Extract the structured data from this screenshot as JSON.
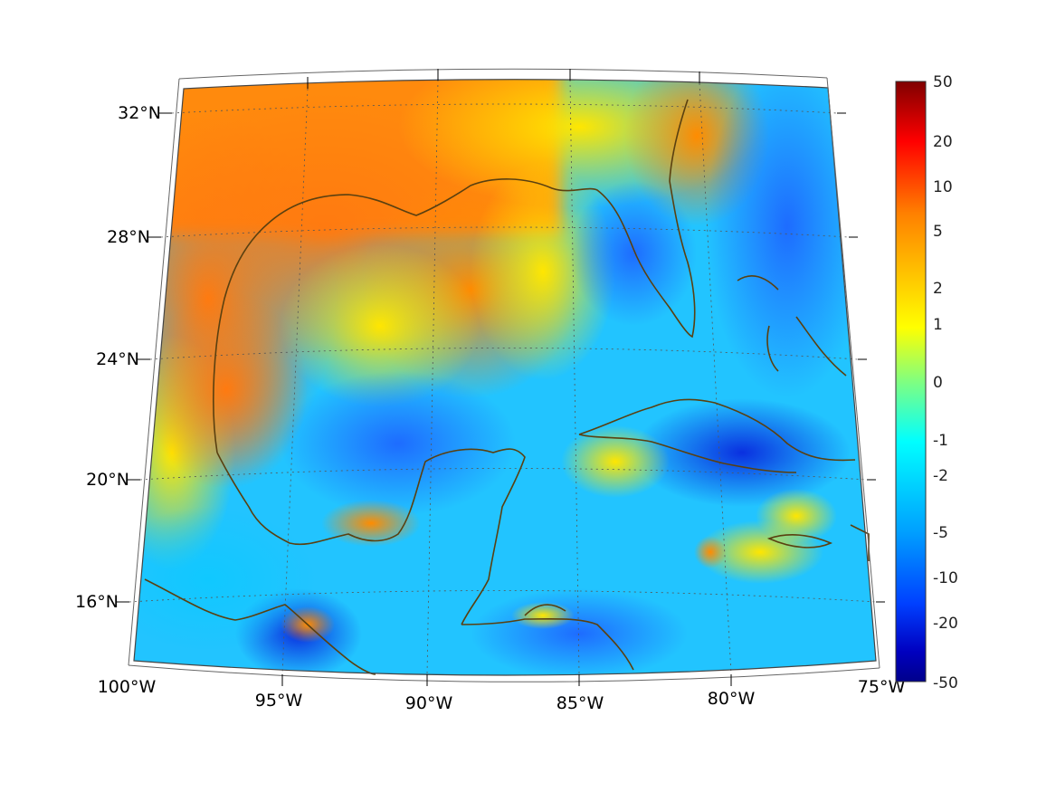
{
  "map": {
    "lat_labels": [
      "32°N",
      "28°N",
      "24°N",
      "20°N",
      "16°N"
    ],
    "lon_labels": [
      "100°W",
      "95°W",
      "90°W",
      "85°W",
      "80°W",
      "75°W"
    ],
    "extent": {
      "lon_min": -100,
      "lon_max": -75,
      "lat_min": 14,
      "lat_max": 33
    },
    "coastline_color": "#5a4010",
    "graticule_color": "#555555"
  },
  "colorbar": {
    "labels": [
      "50",
      "20",
      "10",
      "5",
      "2",
      "1",
      "0",
      "-1",
      "-2",
      "-5",
      "-10",
      "-20",
      "-50"
    ],
    "colors": [
      "#800000",
      "#ff0000",
      "#ff8000",
      "#ffd000",
      "#ffff00",
      "#80ff80",
      "#00ffff",
      "#00a0ff",
      "#0040ff",
      "#0000c0",
      "#00008b"
    ]
  }
}
